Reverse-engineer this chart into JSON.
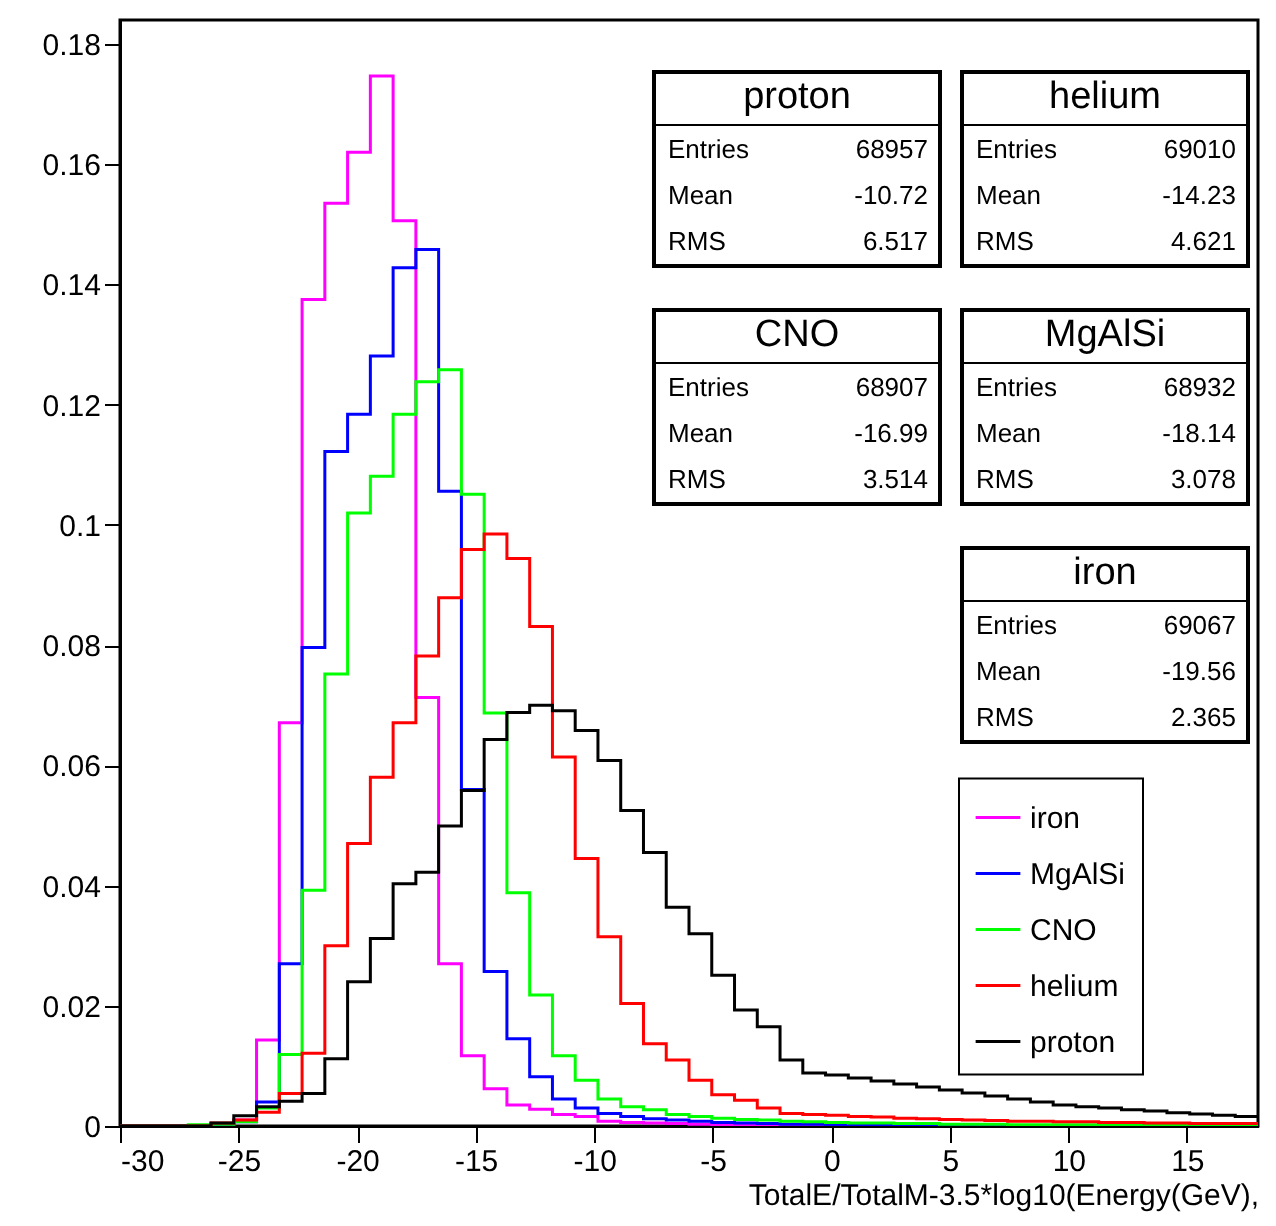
{
  "chart_data": {
    "type": "histogram",
    "xlabel": "TotalE/TotalM-3.5*log10(Energy(GeV),",
    "bins": [
      -30,
      -29.04,
      -28.08,
      -27.12,
      -26.16,
      -25.2,
      -24.24,
      -23.28,
      -22.32,
      -21.36,
      -20.4,
      -19.44,
      -18.48,
      -17.52,
      -16.56,
      -15.6,
      -14.64,
      -13.68,
      -12.72,
      -11.76,
      -10.8,
      -9.84,
      -8.88,
      -7.92,
      -6.96,
      -6,
      -5.04,
      -4.08,
      -3.12,
      -2.16,
      -1.2,
      -0.24,
      0.72,
      1.68,
      2.64,
      3.6,
      4.56,
      5.52,
      6.48,
      7.44,
      8.4,
      9.36,
      10.32,
      11.28,
      12.24,
      13.2,
      14.16,
      15.12,
      16.08,
      17.04,
      18
    ],
    "series": [
      {
        "name": "iron",
        "color": "#ff00ff",
        "values": [
          0,
          0,
          0,
          0,
          0.0003,
          0.001,
          0.0143,
          0.0671,
          0.1375,
          0.1535,
          0.162,
          0.1747,
          0.1506,
          0.0713,
          0.027,
          0.0117,
          0.0062,
          0.0035,
          0.0028,
          0.0019,
          0.0016,
          0.0008,
          0.0006,
          0.0005,
          0.0004,
          0.0003,
          0.0002,
          0.0002,
          0.0001,
          0,
          0,
          0,
          0,
          0,
          0,
          0,
          0,
          0,
          0,
          0,
          0,
          0,
          0,
          0,
          0,
          0,
          0,
          0,
          0,
          0
        ]
      },
      {
        "name": "MgAlSi",
        "color": "#0000ff",
        "values": [
          0,
          0,
          0,
          0,
          0.0003,
          0.0007,
          0.004,
          0.027,
          0.0796,
          0.1122,
          0.1184,
          0.1281,
          0.1428,
          0.1458,
          0.1056,
          0.056,
          0.0257,
          0.0145,
          0.0082,
          0.0045,
          0.003,
          0.0021,
          0.0016,
          0.0012,
          0.001,
          0.0008,
          0.0006,
          0.0005,
          0.0004,
          0.0003,
          0.0003,
          0.0002,
          0.0002,
          0.0002,
          0.0001,
          0.0001,
          0.0001,
          0.0001,
          0.0001,
          0.0001,
          0.0001,
          0.0001,
          0.0001,
          0.0001,
          0.0001,
          0.0001,
          0.0001,
          0.0001,
          0.0001,
          0.0001
        ]
      },
      {
        "name": "CNO",
        "color": "#00ff00",
        "values": [
          0,
          0,
          0,
          0.0002,
          0.0003,
          0.0007,
          0.003,
          0.0119,
          0.0392,
          0.0752,
          0.102,
          0.1081,
          0.1184,
          0.1238,
          0.1258,
          0.1051,
          0.0687,
          0.0388,
          0.0218,
          0.0117,
          0.0076,
          0.0045,
          0.0032,
          0.0027,
          0.0019,
          0.0016,
          0.0013,
          0.0011,
          0.001,
          0.0008,
          0.0007,
          0.0006,
          0.0005,
          0.0005,
          0.0004,
          0.0004,
          0.0003,
          0.0003,
          0.0003,
          0.0002,
          0.0002,
          0.0002,
          0.0002,
          0.0002,
          0.0002,
          0.0002,
          0.0002,
          0.0002,
          0.0002,
          0.0002
        ]
      },
      {
        "name": "helium",
        "color": "#ff0000",
        "values": [
          0,
          0,
          0,
          0,
          0.0005,
          0.001,
          0.0023,
          0.0054,
          0.0121,
          0.03,
          0.047,
          0.058,
          0.0671,
          0.0782,
          0.0879,
          0.0959,
          0.0985,
          0.0944,
          0.0831,
          0.0614,
          0.0445,
          0.0315,
          0.0204,
          0.0137,
          0.011,
          0.0076,
          0.0052,
          0.0043,
          0.003,
          0.0021,
          0.0019,
          0.0018,
          0.0016,
          0.0015,
          0.0013,
          0.0012,
          0.0011,
          0.001,
          0.0009,
          0.0008,
          0.0008,
          0.0007,
          0.0007,
          0.0006,
          0.0006,
          0.0005,
          0.0005,
          0.0004,
          0.0004,
          0.0004
        ]
      },
      {
        "name": "proton",
        "color": "#000000",
        "values": [
          0,
          0,
          0,
          0,
          0.0005,
          0.0017,
          0.0032,
          0.0041,
          0.0054,
          0.0112,
          0.024,
          0.0312,
          0.0403,
          0.0422,
          0.0499,
          0.0558,
          0.0643,
          0.0688,
          0.07,
          0.0691,
          0.0658,
          0.0608,
          0.0525,
          0.0455,
          0.0364,
          0.032,
          0.0251,
          0.0193,
          0.0165,
          0.011,
          0.0088,
          0.0085,
          0.008,
          0.0075,
          0.007,
          0.0065,
          0.006,
          0.0055,
          0.005,
          0.0045,
          0.004,
          0.0035,
          0.0032,
          0.003,
          0.0027,
          0.0025,
          0.0022,
          0.002,
          0.0018,
          0.0016
        ]
      }
    ],
    "xlim": [
      -30,
      18
    ],
    "xticks": [
      -30,
      -25,
      -20,
      -15,
      -10,
      -5,
      0,
      5,
      10,
      15
    ],
    "ylim": [
      0,
      0.184
    ],
    "yticks": [
      0,
      0.02,
      0.04,
      0.06,
      0.08,
      0.1,
      0.12,
      0.14,
      0.16,
      0.18
    ],
    "legend": "right",
    "annotations": [
      "proton\nEntries\t68957\nMean\t-10.72\nRMS\t6.517",
      "helium\nEntries\t69010\nMean\t-14.23\nRMS\t4.621",
      "CNO\nEntries\t68907\nMean\t-16.99\nRMS\t3.514",
      "MgAlSi\nEntries\t68932\nMean\t-18.14\nRMS\t3.078",
      "iron\nEntries\t69067\nMean\t-19.56\nRMS\t2.365"
    ]
  }
}
